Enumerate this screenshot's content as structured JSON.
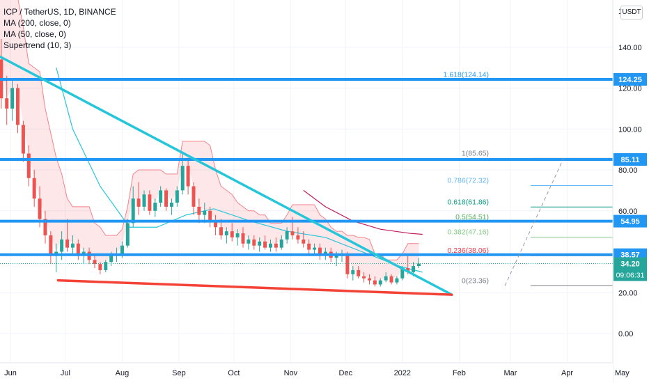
{
  "header": {
    "symbol_line": "ICP / TetherUS, 1D, BINANCE",
    "indicators": [
      "MA (200, close, 0)",
      "MA (50, close, 0)",
      "Supertrend (10, 3)"
    ],
    "currency_button": "USDT"
  },
  "chart_data": {
    "type": "candlestick",
    "x_ticks": [
      "Jun",
      "Jul",
      "Aug",
      "Sep",
      "Oct",
      "Nov",
      "Dec",
      "2022",
      "Feb",
      "Mar",
      "Apr",
      "May"
    ],
    "y_ticks": [
      "140.00",
      "120.00",
      "100.00",
      "80.00",
      "60.00",
      "20.00",
      "0.00"
    ],
    "y_top_partial": "1",
    "price_levels": [
      {
        "value": 124.25,
        "label": "124.25",
        "color": "#2196f3"
      },
      {
        "value": 85.11,
        "label": "85.11",
        "color": "#2196f3"
      },
      {
        "value": 54.95,
        "label": "54.95",
        "color": "#2196f3"
      },
      {
        "value": 38.57,
        "label": "38.57",
        "color": "#2196f3"
      }
    ],
    "last_price": {
      "value": 34.2,
      "label": "34.20",
      "countdown": "09:06:31",
      "color": "#26a69a"
    },
    "fib_levels": [
      {
        "ratio": "1.618",
        "value": 124.14,
        "label": "1.618(124.14)",
        "color": "#2196f3"
      },
      {
        "ratio": "1",
        "value": 85.65,
        "label": "1(85.65)",
        "color": "#787b86"
      },
      {
        "ratio": "0.786",
        "value": 72.32,
        "label": "0.786(72.32)",
        "color": "#64b5f6"
      },
      {
        "ratio": "0.618",
        "value": 61.86,
        "label": "0.618(61.86)",
        "color": "#089981"
      },
      {
        "ratio": "0.5",
        "value": 54.51,
        "label": "0.5(54.51)",
        "color": "#4caf50"
      },
      {
        "ratio": "0.382",
        "value": 47.16,
        "label": "0.382(47.16)",
        "color": "#81c784"
      },
      {
        "ratio": "0.236",
        "value": 38.06,
        "label": "0.236(38.06)",
        "color": "#f23645"
      },
      {
        "ratio": "0",
        "value": 23.36,
        "label": "0(23.36)",
        "color": "#787b86"
      }
    ],
    "candles": [
      {
        "date": "2021-05-21",
        "o": 150,
        "h": 165,
        "l": 132,
        "c": 140
      },
      {
        "date": "2021-05-24",
        "o": 140,
        "h": 158,
        "l": 128,
        "c": 134
      },
      {
        "date": "2021-05-27",
        "o": 134,
        "h": 144,
        "l": 110,
        "c": 115
      },
      {
        "date": "2021-05-30",
        "o": 115,
        "h": 126,
        "l": 102,
        "c": 110
      },
      {
        "date": "2021-06-02",
        "o": 110,
        "h": 124,
        "l": 104,
        "c": 120
      },
      {
        "date": "2021-06-05",
        "o": 120,
        "h": 122,
        "l": 98,
        "c": 102
      },
      {
        "date": "2021-06-08",
        "o": 102,
        "h": 104,
        "l": 84,
        "c": 88
      },
      {
        "date": "2021-06-11",
        "o": 88,
        "h": 92,
        "l": 72,
        "c": 76
      },
      {
        "date": "2021-06-14",
        "o": 76,
        "h": 80,
        "l": 62,
        "c": 66
      },
      {
        "date": "2021-06-17",
        "o": 66,
        "h": 72,
        "l": 52,
        "c": 56
      },
      {
        "date": "2021-06-20",
        "o": 56,
        "h": 60,
        "l": 44,
        "c": 48
      },
      {
        "date": "2021-06-23",
        "o": 48,
        "h": 50,
        "l": 34,
        "c": 38
      },
      {
        "date": "2021-06-26",
        "o": 38,
        "h": 44,
        "l": 30,
        "c": 40
      },
      {
        "date": "2021-06-29",
        "o": 40,
        "h": 50,
        "l": 36,
        "c": 46
      },
      {
        "date": "2021-07-02",
        "o": 46,
        "h": 56,
        "l": 40,
        "c": 42
      },
      {
        "date": "2021-07-05",
        "o": 42,
        "h": 48,
        "l": 38,
        "c": 44
      },
      {
        "date": "2021-07-08",
        "o": 44,
        "h": 46,
        "l": 36,
        "c": 38
      },
      {
        "date": "2021-07-11",
        "o": 38,
        "h": 42,
        "l": 34,
        "c": 40
      },
      {
        "date": "2021-07-14",
        "o": 40,
        "h": 42,
        "l": 34,
        "c": 36
      },
      {
        "date": "2021-07-17",
        "o": 36,
        "h": 38,
        "l": 32,
        "c": 34
      },
      {
        "date": "2021-07-20",
        "o": 34,
        "h": 35,
        "l": 29,
        "c": 31
      },
      {
        "date": "2021-07-23",
        "o": 31,
        "h": 36,
        "l": 30,
        "c": 35
      },
      {
        "date": "2021-07-26",
        "o": 35,
        "h": 40,
        "l": 33,
        "c": 38
      },
      {
        "date": "2021-07-29",
        "o": 38,
        "h": 42,
        "l": 35,
        "c": 39
      },
      {
        "date": "2021-08-01",
        "o": 39,
        "h": 45,
        "l": 37,
        "c": 43
      },
      {
        "date": "2021-08-04",
        "o": 43,
        "h": 56,
        "l": 42,
        "c": 54
      },
      {
        "date": "2021-08-07",
        "o": 54,
        "h": 72,
        "l": 52,
        "c": 66
      },
      {
        "date": "2021-08-10",
        "o": 66,
        "h": 74,
        "l": 58,
        "c": 62
      },
      {
        "date": "2021-08-13",
        "o": 62,
        "h": 70,
        "l": 60,
        "c": 68
      },
      {
        "date": "2021-08-16",
        "o": 68,
        "h": 70,
        "l": 58,
        "c": 60
      },
      {
        "date": "2021-08-19",
        "o": 60,
        "h": 66,
        "l": 57,
        "c": 64
      },
      {
        "date": "2021-08-22",
        "o": 64,
        "h": 72,
        "l": 62,
        "c": 70
      },
      {
        "date": "2021-08-25",
        "o": 70,
        "h": 71,
        "l": 60,
        "c": 62
      },
      {
        "date": "2021-08-28",
        "o": 62,
        "h": 66,
        "l": 58,
        "c": 64
      },
      {
        "date": "2021-08-31",
        "o": 64,
        "h": 72,
        "l": 62,
        "c": 70
      },
      {
        "date": "2021-09-03",
        "o": 70,
        "h": 88,
        "l": 68,
        "c": 82
      },
      {
        "date": "2021-09-06",
        "o": 82,
        "h": 86,
        "l": 68,
        "c": 72
      },
      {
        "date": "2021-09-09",
        "o": 72,
        "h": 74,
        "l": 58,
        "c": 62
      },
      {
        "date": "2021-09-12",
        "o": 62,
        "h": 66,
        "l": 54,
        "c": 58
      },
      {
        "date": "2021-09-15",
        "o": 58,
        "h": 64,
        "l": 54,
        "c": 60
      },
      {
        "date": "2021-09-18",
        "o": 60,
        "h": 62,
        "l": 52,
        "c": 55
      },
      {
        "date": "2021-09-21",
        "o": 55,
        "h": 58,
        "l": 48,
        "c": 52
      },
      {
        "date": "2021-09-24",
        "o": 52,
        "h": 56,
        "l": 46,
        "c": 48
      },
      {
        "date": "2021-09-27",
        "o": 48,
        "h": 52,
        "l": 44,
        "c": 50
      },
      {
        "date": "2021-09-30",
        "o": 50,
        "h": 54,
        "l": 45,
        "c": 47
      },
      {
        "date": "2021-10-03",
        "o": 47,
        "h": 51,
        "l": 43,
        "c": 49
      },
      {
        "date": "2021-10-06",
        "o": 49,
        "h": 52,
        "l": 42,
        "c": 44
      },
      {
        "date": "2021-10-09",
        "o": 44,
        "h": 48,
        "l": 41,
        "c": 46
      },
      {
        "date": "2021-10-12",
        "o": 46,
        "h": 48,
        "l": 41,
        "c": 43
      },
      {
        "date": "2021-10-15",
        "o": 43,
        "h": 47,
        "l": 40,
        "c": 45
      },
      {
        "date": "2021-10-18",
        "o": 45,
        "h": 48,
        "l": 41,
        "c": 42
      },
      {
        "date": "2021-10-21",
        "o": 42,
        "h": 46,
        "l": 40,
        "c": 44
      },
      {
        "date": "2021-10-24",
        "o": 44,
        "h": 47,
        "l": 40,
        "c": 42
      },
      {
        "date": "2021-10-27",
        "o": 42,
        "h": 48,
        "l": 41,
        "c": 46
      },
      {
        "date": "2021-10-30",
        "o": 46,
        "h": 52,
        "l": 44,
        "c": 50
      },
      {
        "date": "2021-11-02",
        "o": 50,
        "h": 57,
        "l": 46,
        "c": 48
      },
      {
        "date": "2021-11-05",
        "o": 48,
        "h": 52,
        "l": 44,
        "c": 46
      },
      {
        "date": "2021-11-08",
        "o": 46,
        "h": 50,
        "l": 42,
        "c": 44
      },
      {
        "date": "2021-11-11",
        "o": 44,
        "h": 46,
        "l": 39,
        "c": 41
      },
      {
        "date": "2021-11-14",
        "o": 41,
        "h": 44,
        "l": 38,
        "c": 42
      },
      {
        "date": "2021-11-17",
        "o": 42,
        "h": 44,
        "l": 36,
        "c": 38
      },
      {
        "date": "2021-11-20",
        "o": 38,
        "h": 42,
        "l": 36,
        "c": 40
      },
      {
        "date": "2021-11-23",
        "o": 40,
        "h": 42,
        "l": 35,
        "c": 37
      },
      {
        "date": "2021-11-26",
        "o": 37,
        "h": 40,
        "l": 33,
        "c": 38
      },
      {
        "date": "2021-11-29",
        "o": 38,
        "h": 41,
        "l": 35,
        "c": 39
      },
      {
        "date": "2021-12-02",
        "o": 39,
        "h": 40,
        "l": 27,
        "c": 29
      },
      {
        "date": "2021-12-05",
        "o": 29,
        "h": 33,
        "l": 26,
        "c": 31
      },
      {
        "date": "2021-12-08",
        "o": 31,
        "h": 33,
        "l": 27,
        "c": 28
      },
      {
        "date": "2021-12-11",
        "o": 28,
        "h": 30,
        "l": 25,
        "c": 27
      },
      {
        "date": "2021-12-14",
        "o": 27,
        "h": 29,
        "l": 24,
        "c": 26
      },
      {
        "date": "2021-12-17",
        "o": 26,
        "h": 28,
        "l": 23,
        "c": 24
      },
      {
        "date": "2021-12-20",
        "o": 24,
        "h": 27,
        "l": 23,
        "c": 26
      },
      {
        "date": "2021-12-23",
        "o": 26,
        "h": 30,
        "l": 25,
        "c": 28
      },
      {
        "date": "2021-12-26",
        "o": 28,
        "h": 29,
        "l": 24,
        "c": 25
      },
      {
        "date": "2021-12-29",
        "o": 25,
        "h": 28,
        "l": 24,
        "c": 27
      },
      {
        "date": "2022-01-01",
        "o": 27,
        "h": 33,
        "l": 26,
        "c": 32
      },
      {
        "date": "2022-01-04",
        "o": 32,
        "h": 38,
        "l": 29,
        "c": 30
      },
      {
        "date": "2022-01-07",
        "o": 30,
        "h": 35,
        "l": 28,
        "c": 33
      },
      {
        "date": "2022-01-10",
        "o": 33,
        "h": 37,
        "l": 32,
        "c": 34.2
      }
    ],
    "ma200": [
      {
        "date": "2021-11-08",
        "v": 70
      },
      {
        "date": "2021-11-20",
        "v": 62
      },
      {
        "date": "2021-12-05",
        "v": 55
      },
      {
        "date": "2021-12-20",
        "v": 51
      },
      {
        "date": "2022-01-05",
        "v": 49
      },
      {
        "date": "2022-01-12",
        "v": 48.5
      }
    ],
    "ma50": [
      {
        "date": "2021-06-26",
        "v": 130
      },
      {
        "date": "2021-07-05",
        "v": 100
      },
      {
        "date": "2021-07-20",
        "v": 72
      },
      {
        "date": "2021-08-05",
        "v": 52
      },
      {
        "date": "2021-08-20",
        "v": 52
      },
      {
        "date": "2021-09-05",
        "v": 58
      },
      {
        "date": "2021-09-20",
        "v": 61
      },
      {
        "date": "2021-10-10",
        "v": 55
      },
      {
        "date": "2021-10-30",
        "v": 50
      },
      {
        "date": "2021-11-20",
        "v": 47
      },
      {
        "date": "2021-12-10",
        "v": 40
      },
      {
        "date": "2021-12-30",
        "v": 33
      },
      {
        "date": "2022-01-12",
        "v": 30
      }
    ],
    "trendlines": [
      {
        "name": "descending-resistance",
        "color": "#26c6da",
        "from": {
          "date": "2021-05-25",
          "v": 136
        },
        "to": {
          "date": "2022-01-28",
          "v": 19
        }
      },
      {
        "name": "support-line",
        "color": "#f44336",
        "from": {
          "date": "2021-06-27",
          "v": 26
        },
        "to": {
          "date": "2022-01-28",
          "v": 19
        }
      }
    ],
    "projection": {
      "from": {
        "date": "2022-02-26",
        "v": 23.36
      },
      "to": {
        "date": "2022-03-30",
        "v": 85.65
      }
    },
    "grid": true
  }
}
